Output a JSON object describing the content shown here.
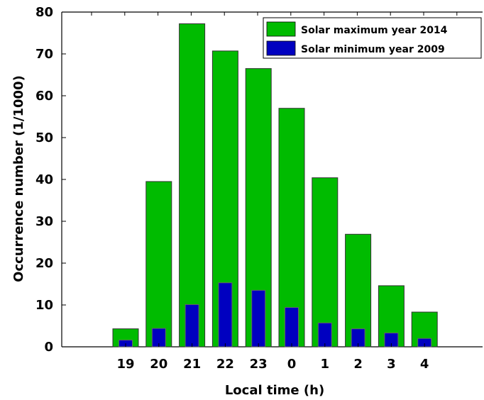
{
  "chart_data": {
    "type": "bar",
    "title": "",
    "xlabel": "Local time (h)",
    "ylabel": "Occurrence number (1/1000)",
    "ylim": [
      0,
      80
    ],
    "yticks": [
      0,
      10,
      20,
      30,
      40,
      50,
      60,
      70,
      80
    ],
    "categories": [
      "19",
      "20",
      "21",
      "22",
      "23",
      "0",
      "1",
      "2",
      "3",
      "4"
    ],
    "series": [
      {
        "name": "Solar maximum year 2014",
        "color": "#00bb00",
        "values": [
          4.3,
          39.5,
          77.2,
          70.7,
          66.5,
          57.0,
          40.4,
          26.9,
          14.6,
          8.3
        ]
      },
      {
        "name": "Solar minimum year 2009",
        "color": "#0000c0",
        "values": [
          1.6,
          4.4,
          10.1,
          15.3,
          13.5,
          9.4,
          5.7,
          4.3,
          3.3,
          2.0
        ]
      }
    ],
    "grid": false,
    "legend_position": "top-right"
  }
}
